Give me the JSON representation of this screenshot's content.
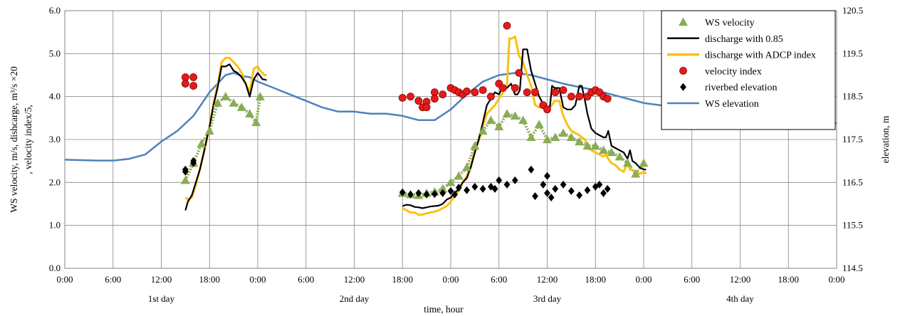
{
  "chart_data": {
    "type": "line",
    "x_unit": "hours",
    "xlim": [
      0,
      96
    ],
    "x_tick_labels": [
      "0:00",
      "6:00",
      "12:00",
      "18:00",
      "0:00",
      "6:00",
      "12:00",
      "18:00",
      "0:00",
      "6:00",
      "12:00",
      "18:00",
      "0:00",
      "6:00",
      "12:00",
      "18:00",
      "0:00"
    ],
    "day_labels": [
      {
        "text": "1st day",
        "x": 12
      },
      {
        "text": "2nd day",
        "x": 36
      },
      {
        "text": "3rd day",
        "x": 60
      },
      {
        "text": "4th day",
        "x": 84
      }
    ],
    "xlabel": "time, hour",
    "ylabel_left_line1": "WS velocity, m/s, dishcarge, m³/s ×20",
    "ylabel_left_line2": ", velocity index/5,",
    "ylabel_right": "elevation, m",
    "ylim_left": [
      0,
      6
    ],
    "ylim_right": [
      114.5,
      120.5
    ],
    "y_ticks_left": [
      "0.0",
      "1.0",
      "2.0",
      "3.0",
      "4.0",
      "5.0",
      "6.0"
    ],
    "y_ticks_right": [
      "114.5",
      "115.5",
      "116.5",
      "117.5",
      "118.5",
      "119.5",
      "120.5"
    ],
    "grid": true,
    "legend_position": "top-right",
    "series": [
      {
        "name": "WS velocity",
        "kind": "triangle-markers",
        "color": "#8aac55",
        "axis": "left",
        "x": [
          15,
          16,
          17,
          18,
          19,
          20,
          21,
          22,
          23,
          23.8,
          24.3,
          42,
          43,
          44,
          45,
          46,
          47,
          48,
          49,
          50,
          51,
          52,
          53,
          54,
          55,
          56,
          57,
          58,
          59,
          60,
          61,
          62,
          63,
          64,
          65,
          66,
          67,
          68,
          69,
          70,
          71,
          72
        ],
        "y": [
          2.05,
          2.45,
          2.9,
          3.2,
          3.85,
          4.0,
          3.85,
          3.75,
          3.6,
          3.4,
          4.0,
          1.75,
          1.72,
          1.7,
          1.75,
          1.78,
          1.85,
          2.0,
          2.15,
          2.35,
          2.85,
          3.2,
          3.45,
          3.3,
          3.6,
          3.55,
          3.45,
          3.05,
          3.35,
          3.0,
          3.05,
          3.15,
          3.05,
          2.95,
          2.85,
          2.85,
          2.75,
          2.7,
          2.6,
          2.45,
          2.2,
          2.45
        ]
      },
      {
        "name": "discharge with 0.85",
        "kind": "line",
        "color": "#000000",
        "axis": "left",
        "x": [
          15,
          15.3,
          15.8,
          16.3,
          16.8,
          17.3,
          18,
          18.5,
          19,
          19.5,
          20,
          20.5,
          21,
          21.5,
          22,
          22.5,
          23,
          23.5,
          24,
          24.3,
          24.6,
          24.8,
          25.1,
          42,
          42.5,
          43,
          43.5,
          44,
          44.5,
          45,
          45.5,
          46,
          46.5,
          47,
          47.5,
          48,
          48.5,
          49,
          49.5,
          50,
          50.5,
          51,
          51.5,
          52,
          52.5,
          53,
          53.5,
          54,
          54.5,
          55,
          55.5,
          56,
          56.3,
          56.6,
          57,
          57.5,
          58,
          58.5,
          59,
          59.3,
          59.6,
          60,
          60.3,
          60.6,
          60.9,
          61.5,
          62,
          62.5,
          63,
          63.5,
          64,
          64.3,
          64.7,
          65,
          65.5,
          66,
          66.5,
          67,
          67.3,
          67.6,
          68,
          68.5,
          69,
          69.5,
          70,
          70.3,
          70.6,
          71,
          71.5,
          72,
          72.3
        ],
        "y": [
          1.35,
          1.55,
          1.7,
          2.0,
          2.3,
          2.7,
          3.3,
          3.8,
          4.2,
          4.7,
          4.7,
          4.75,
          4.6,
          4.55,
          4.45,
          4.3,
          4.0,
          4.4,
          4.55,
          4.48,
          4.4,
          4.4,
          4.38,
          1.45,
          1.48,
          1.47,
          1.43,
          1.42,
          1.4,
          1.42,
          1.44,
          1.45,
          1.46,
          1.5,
          1.6,
          1.65,
          1.75,
          1.85,
          2.0,
          2.1,
          2.35,
          2.7,
          3.0,
          3.4,
          3.8,
          3.95,
          4.1,
          4.05,
          4.25,
          4.2,
          4.3,
          4.05,
          4.05,
          4.15,
          5.1,
          5.1,
          4.6,
          4.3,
          4.0,
          3.9,
          3.75,
          3.7,
          3.7,
          4.25,
          4.2,
          4.2,
          3.75,
          3.7,
          3.7,
          3.8,
          4.25,
          4.25,
          3.9,
          3.6,
          3.25,
          3.15,
          3.1,
          3.05,
          3.05,
          3.2,
          2.85,
          2.8,
          2.75,
          2.7,
          2.55,
          2.75,
          2.5,
          2.45,
          2.35,
          2.3,
          2.3
        ]
      },
      {
        "name": "discharge with ADCP index",
        "kind": "line",
        "color": "#fbc012",
        "axis": "left",
        "x": [
          15,
          15.3,
          15.8,
          16.3,
          16.8,
          17.3,
          18,
          18.5,
          19,
          19.5,
          20,
          20.5,
          21,
          21.5,
          22,
          22.5,
          23,
          23.5,
          24,
          24.3,
          24.6,
          24.8,
          25.1,
          42,
          42.5,
          43,
          43.5,
          44,
          44.5,
          45,
          45.5,
          46,
          46.5,
          47,
          47.5,
          48,
          48.5,
          49,
          49.5,
          50,
          50.5,
          51,
          51.5,
          52,
          52.5,
          53,
          53.5,
          54,
          54.5,
          55,
          55.3,
          55.6,
          56,
          56.5,
          57,
          57.5,
          58,
          58.5,
          59,
          59.3,
          59.6,
          60,
          60.3,
          60.6,
          60.9,
          61.5,
          62,
          62.5,
          63,
          63.5,
          64,
          64.3,
          64.7,
          65,
          65.5,
          66,
          66.5,
          67,
          67.3,
          67.6,
          68,
          68.5,
          69,
          69.5,
          70,
          70.3,
          70.6,
          71,
          71.5,
          72,
          72.3
        ],
        "y": [
          1.65,
          1.6,
          1.65,
          1.95,
          2.3,
          2.7,
          3.3,
          3.85,
          4.25,
          4.8,
          4.9,
          4.9,
          4.8,
          4.7,
          4.55,
          4.3,
          4.1,
          4.65,
          4.7,
          4.6,
          4.55,
          4.5,
          4.5,
          1.4,
          1.35,
          1.3,
          1.3,
          1.25,
          1.25,
          1.28,
          1.3,
          1.32,
          1.35,
          1.4,
          1.45,
          1.55,
          1.7,
          1.8,
          2.0,
          2.15,
          2.4,
          2.7,
          3.0,
          3.3,
          3.6,
          3.7,
          3.8,
          3.95,
          4.1,
          4.25,
          5.35,
          5.35,
          5.4,
          4.95,
          4.8,
          4.5,
          4.25,
          3.8,
          3.75,
          3.75,
          3.8,
          3.75,
          3.75,
          3.8,
          3.9,
          3.9,
          3.55,
          3.35,
          3.2,
          3.15,
          3.1,
          3.05,
          3.0,
          2.8,
          2.75,
          2.7,
          2.65,
          2.6,
          2.65,
          2.55,
          2.45,
          2.4,
          2.3,
          2.25,
          2.45,
          2.3,
          2.28,
          2.25,
          2.2,
          2.25,
          2.2
        ]
      },
      {
        "name": "velocity index",
        "kind": "circle-markers",
        "color": "#e41b1b",
        "axis": "left",
        "x": [
          15,
          15,
          16,
          16,
          42,
          43,
          44,
          44.5,
          45,
          45,
          46,
          46,
          47,
          48,
          48.5,
          49,
          49.5,
          50,
          51,
          52,
          53,
          54,
          54.5,
          55,
          56,
          56.5,
          57.5,
          58.5,
          59.5,
          60,
          61,
          62,
          63,
          64,
          65,
          65.5,
          66,
          66.5,
          67,
          67.5
        ],
        "y": [
          4.45,
          4.3,
          4.45,
          4.25,
          3.97,
          4.0,
          3.9,
          3.75,
          3.88,
          3.75,
          4.1,
          3.95,
          4.05,
          4.2,
          4.15,
          4.1,
          4.05,
          4.12,
          4.1,
          4.15,
          4.0,
          4.3,
          4.2,
          5.65,
          4.2,
          4.55,
          4.1,
          4.1,
          3.8,
          3.7,
          4.1,
          4.15,
          4.0,
          4.0,
          4.0,
          4.1,
          4.15,
          4.1,
          4.0,
          3.95
        ]
      },
      {
        "name": "riverbed elevation",
        "kind": "diamond-markers",
        "color": "#000000",
        "axis": "left",
        "x": [
          15,
          15,
          16,
          16,
          42,
          43,
          44,
          45,
          46,
          47,
          48,
          48.5,
          49,
          50,
          51,
          52,
          53,
          53.5,
          54,
          55,
          56,
          58,
          58.5,
          59.5,
          60,
          60,
          60.5,
          61,
          62,
          63,
          64,
          65,
          66,
          66.5,
          67,
          67.5
        ],
        "y": [
          2.3,
          2.25,
          2.5,
          2.45,
          1.77,
          1.72,
          1.75,
          1.72,
          1.73,
          1.75,
          1.8,
          1.72,
          1.88,
          1.82,
          1.9,
          1.85,
          1.9,
          1.85,
          2.05,
          1.95,
          2.05,
          2.3,
          1.68,
          1.95,
          2.15,
          1.75,
          1.65,
          1.85,
          1.95,
          1.8,
          1.7,
          1.82,
          1.9,
          1.95,
          1.75,
          1.85
        ]
      },
      {
        "name": "WS elevation",
        "kind": "line",
        "color": "#4f81bd",
        "axis": "right",
        "x": [
          0,
          2,
          4,
          6,
          8,
          10,
          12,
          14,
          16,
          18,
          19,
          20,
          21,
          22,
          23,
          24,
          26,
          28,
          30,
          32,
          34,
          36,
          38,
          40,
          42,
          44,
          46,
          48,
          50,
          52,
          54,
          56,
          58,
          60,
          62,
          64,
          66,
          68,
          70,
          72,
          74,
          76,
          78,
          80,
          82,
          84,
          86,
          88,
          90,
          92,
          94,
          96
        ],
        "y": [
          117.03,
          117.02,
          117.01,
          117.01,
          117.05,
          117.15,
          117.45,
          117.7,
          118.05,
          118.6,
          118.8,
          119.0,
          119.05,
          118.98,
          118.95,
          118.85,
          118.7,
          118.55,
          118.4,
          118.25,
          118.15,
          118.15,
          118.1,
          118.1,
          118.05,
          117.95,
          117.95,
          118.2,
          118.55,
          118.85,
          119.0,
          119.05,
          119.0,
          118.9,
          118.8,
          118.72,
          118.65,
          118.55,
          118.45,
          118.35,
          118.3,
          118.25,
          118.2,
          118.15,
          118.1,
          118.05,
          118.0,
          117.97,
          117.95,
          117.92,
          117.9,
          117.88
        ]
      }
    ]
  }
}
